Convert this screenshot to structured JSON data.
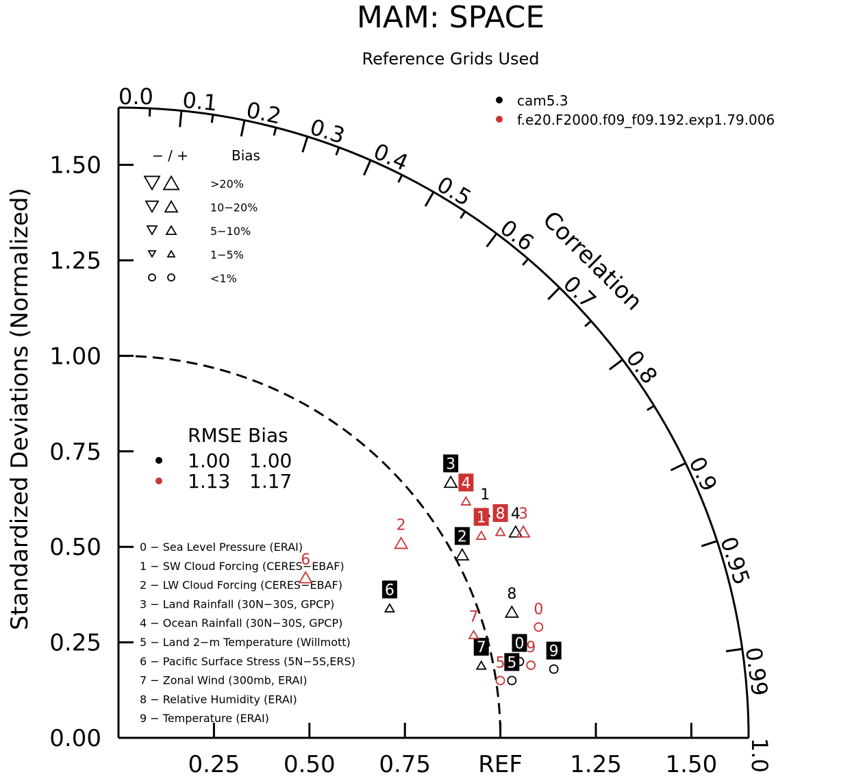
{
  "chart_data": {
    "type": "scatter",
    "subtype": "taylor-diagram",
    "title": "MAM: SPACE",
    "subtitle": "Reference Grids Used",
    "ylabel": "Standardized Deviations (Normalized)",
    "correlation_label": "Correlation",
    "ref_label": "REF",
    "std_range": [
      0,
      1.65
    ],
    "y_ticks": [
      "0.00",
      "0.25",
      "0.50",
      "0.75",
      "1.00",
      "1.25",
      "1.50"
    ],
    "y_tick_values": [
      0,
      0.25,
      0.5,
      0.75,
      1.0,
      1.25,
      1.5
    ],
    "x_ticks": [
      {
        "value": 0.25,
        "label": "0.25"
      },
      {
        "value": 0.5,
        "label": "0.50"
      },
      {
        "value": 0.75,
        "label": "0.75"
      },
      {
        "value": 1.0,
        "label": "REF"
      },
      {
        "value": 1.25,
        "label": "1.25"
      },
      {
        "value": 1.5,
        "label": "1.50"
      }
    ],
    "corr_labels": [
      {
        "value": 0.0,
        "label": "0.0"
      },
      {
        "value": 0.1,
        "label": "0.1"
      },
      {
        "value": 0.2,
        "label": "0.2"
      },
      {
        "value": 0.3,
        "label": "0.3"
      },
      {
        "value": 0.4,
        "label": "0.4"
      },
      {
        "value": 0.5,
        "label": "0.5"
      },
      {
        "value": 0.6,
        "label": "0.6"
      },
      {
        "value": 0.7,
        "label": "0.7"
      },
      {
        "value": 0.8,
        "label": "0.8"
      },
      {
        "value": 0.9,
        "label": "0.9"
      },
      {
        "value": 0.95,
        "label": "0.95"
      },
      {
        "value": 0.99,
        "label": "0.99"
      },
      {
        "value": 1.0,
        "label": "1.0"
      }
    ],
    "corr_minor_ticks": [
      0.05,
      0.15,
      0.25,
      0.35,
      0.45,
      0.55,
      0.65,
      0.75,
      0.85
    ],
    "legend_models": [
      {
        "name": "cam5.3",
        "color": "#000000"
      },
      {
        "name": "f.e20.F2000.f09_f09.192.exp1.79.006",
        "color": "#cc3333"
      }
    ],
    "bias_legend": {
      "header_sign": "−  /  +",
      "header_label": "Bias",
      "rows": [
        {
          "label": ">20%",
          "size": 22
        },
        {
          "label": "10−20%",
          "size": 18
        },
        {
          "label": "5−10%",
          "size": 14
        },
        {
          "label": "1−5%",
          "size": 10
        },
        {
          "label": "<1%",
          "size": 0
        }
      ]
    },
    "rmse_table": {
      "header": "RMSE Bias",
      "rows": [
        {
          "color": "#000000",
          "rmse": "1.00",
          "bias": "1.00"
        },
        {
          "color": "#cc3333",
          "rmse": "1.13",
          "bias": "1.17"
        }
      ]
    },
    "variables": [
      "0 − Sea Level Pressure (ERAI)",
      "1 − SW Cloud Forcing (CERES−EBAF)",
      "2 − LW Cloud Forcing (CERES−EBAF)",
      "3 − Land Rainfall (30N−30S, GPCP)",
      "4 − Ocean Rainfall (30N−30S, GPCP)",
      "5 − Land 2−m Temperature (Willmott)",
      "6 − Pacific Surface Stress (5N−5S,ERS)",
      "7 − Zonal Wind (300mb, ERAI)",
      "8 − Relative Humidity (ERAI)",
      "9 − Temperature (ERAI)"
    ],
    "series": [
      {
        "name": "cam5.3",
        "color": "#000000",
        "points": [
          {
            "id": "0",
            "x": 1.05,
            "y": 0.2,
            "marker": "circle",
            "boxed": true
          },
          {
            "id": "1",
            "x": 0.96,
            "y": 0.59,
            "marker": "triangle-up-small",
            "boxed": false
          },
          {
            "id": "2",
            "x": 0.9,
            "y": 0.48,
            "marker": "triangle-up",
            "boxed": true
          },
          {
            "id": "3",
            "x": 0.87,
            "y": 0.67,
            "marker": "triangle-up",
            "boxed": true
          },
          {
            "id": "4",
            "x": 1.04,
            "y": 0.54,
            "marker": "triangle-up",
            "boxed": false
          },
          {
            "id": "5",
            "x": 1.03,
            "y": 0.15,
            "marker": "circle",
            "boxed": true
          },
          {
            "id": "6",
            "x": 0.71,
            "y": 0.34,
            "marker": "triangle-up-small",
            "boxed": true
          },
          {
            "id": "7",
            "x": 0.95,
            "y": 0.19,
            "marker": "triangle-up-small",
            "boxed": true
          },
          {
            "id": "8",
            "x": 1.03,
            "y": 0.33,
            "marker": "triangle-up",
            "boxed": false
          },
          {
            "id": "9",
            "x": 1.14,
            "y": 0.18,
            "marker": "circle",
            "boxed": true
          }
        ]
      },
      {
        "name": "f.e20.F2000.f09_f09.192.exp1.79.006",
        "color": "#cc3333",
        "points": [
          {
            "id": "0",
            "x": 1.1,
            "y": 0.29,
            "marker": "circle",
            "boxed": false
          },
          {
            "id": "1",
            "x": 0.95,
            "y": 0.53,
            "marker": "triangle-up-small",
            "boxed": true
          },
          {
            "id": "2",
            "x": 0.74,
            "y": 0.51,
            "marker": "triangle-up",
            "boxed": false
          },
          {
            "id": "3",
            "x": 1.06,
            "y": 0.54,
            "marker": "triangle-up",
            "boxed": false
          },
          {
            "id": "4",
            "x": 0.91,
            "y": 0.62,
            "marker": "triangle-up-small",
            "boxed": true
          },
          {
            "id": "5",
            "x": 1.0,
            "y": 0.15,
            "marker": "circle",
            "boxed": false
          },
          {
            "id": "6",
            "x": 0.49,
            "y": 0.42,
            "marker": "triangle-up",
            "boxed": false
          },
          {
            "id": "7",
            "x": 0.93,
            "y": 0.27,
            "marker": "triangle-up-small",
            "boxed": false
          },
          {
            "id": "8",
            "x": 1.0,
            "y": 0.54,
            "marker": "triangle-up-small",
            "boxed": true
          },
          {
            "id": "9",
            "x": 1.08,
            "y": 0.19,
            "marker": "circle",
            "boxed": false
          }
        ]
      }
    ]
  }
}
